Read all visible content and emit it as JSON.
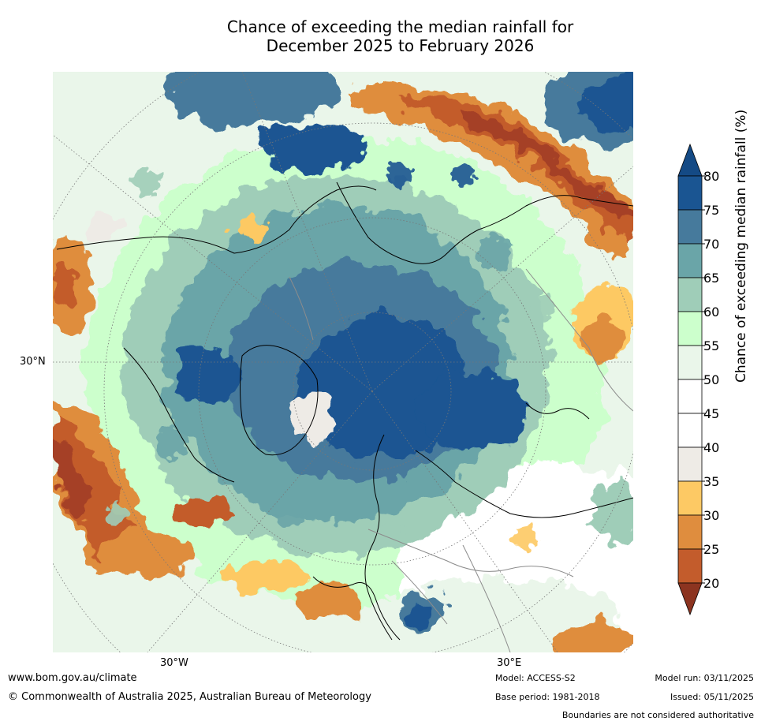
{
  "title": {
    "line1": "Chance of exceeding the median rainfall for",
    "line2": "December 2025 to February 2026"
  },
  "map": {
    "lat_labels": [
      "30°N"
    ],
    "lon_labels": [
      "30°W",
      "30°E"
    ]
  },
  "colorbar": {
    "title": "Chance of exceeding median rainfall (%)",
    "ticks": [
      "80",
      "75",
      "70",
      "65",
      "60",
      "55",
      "50",
      "45",
      "40",
      "35",
      "30",
      "25",
      "20"
    ],
    "bins": [
      {
        "range": "75-80",
        "color": "#1a5592"
      },
      {
        "range": "70-75",
        "color": "#467a9c"
      },
      {
        "range": "65-70",
        "color": "#6aa5a8"
      },
      {
        "range": "60-65",
        "color": "#9fcdb8"
      },
      {
        "range": "55-60",
        "color": "#ccffcc"
      },
      {
        "range": "50-55",
        "color": "#eaf6ea"
      },
      {
        "range": "45-50",
        "color": "#ffffff"
      },
      {
        "range": "40-45",
        "color": "#ffffff"
      },
      {
        "range": "35-40",
        "color": "#eeebe6"
      },
      {
        "range": "30-35",
        "color": "#fdc964"
      },
      {
        "range": "25-30",
        "color": "#df8d3e"
      },
      {
        "range": "20-25",
        "color": "#c35c2c"
      },
      {
        "range": "below-20",
        "color": "#a54125"
      }
    ],
    "over_color": "#144a85",
    "under_color": "#8c3420"
  },
  "footer": {
    "url": "www.bom.gov.au/climate",
    "copyright": "© Commonwealth of Australia 2025, Australian Bureau of Meteorology",
    "model": "Model: ACCESS-S2",
    "base_period": "Base period: 1981-2018",
    "model_run": "Model run: 03/11/2025",
    "issued": "Issued: 05/11/2025",
    "boundaries": "Boundaries are not considered authoritative"
  }
}
